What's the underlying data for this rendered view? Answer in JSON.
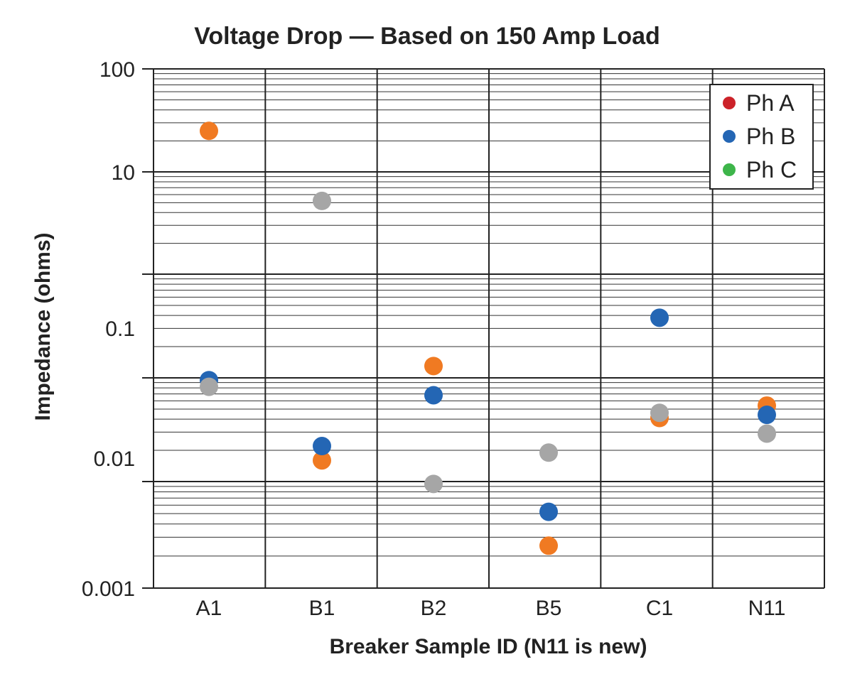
{
  "chart_data": {
    "type": "scatter",
    "title": "Voltage Drop — Based on 150 Amp Load",
    "xlabel": "Breaker Sample ID (N11 is new)",
    "ylabel": "Impedance (ohms)",
    "yscale": "log",
    "ylim": [
      0.001,
      100
    ],
    "y_tick_labels": [
      "100",
      "10",
      "0.1",
      "0.01",
      "0.001"
    ],
    "categories": [
      "A1",
      "B1",
      "B2",
      "B5",
      "C1",
      "N11"
    ],
    "legend_position": "top-right",
    "series": [
      {
        "name": "Ph A",
        "legend_color": "#cc2229",
        "color": "#f07a22",
        "values": [
          25,
          0.016,
          0.13,
          0.0025,
          0.041,
          0.054
        ]
      },
      {
        "name": "Ph B",
        "legend_color": "#2466b4",
        "color": "#2466b4",
        "values": [
          0.095,
          0.022,
          0.068,
          0.0052,
          0.38,
          0.044
        ]
      },
      {
        "name": "Ph C",
        "legend_color": "#3db54a",
        "color": "#a6a6a6",
        "values": [
          0.082,
          5.2,
          0.0095,
          0.019,
          0.046,
          0.029
        ]
      }
    ]
  }
}
